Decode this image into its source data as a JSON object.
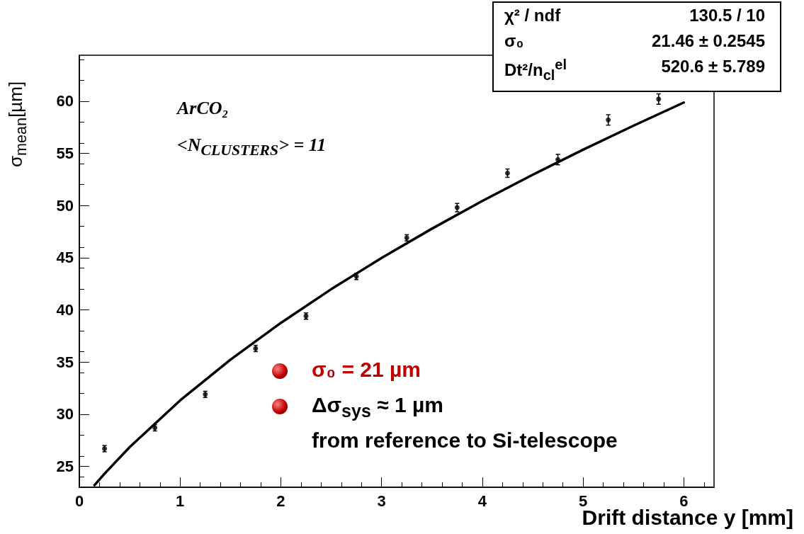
{
  "chart_data": {
    "type": "scatter",
    "xlabel": "Drift distance y [mm]",
    "ylabel": "σ$_{mean}$[µm]",
    "xlim": [
      0,
      6.3
    ],
    "xticks": [
      0,
      1,
      2,
      3,
      4,
      5,
      6
    ],
    "ylim": [
      23,
      64.4
    ],
    "yticks": [
      25,
      30,
      35,
      40,
      45,
      50,
      55,
      60
    ],
    "grid": false,
    "marker": "circle",
    "series": [
      {
        "color": "#000000",
        "x": [
          0.25,
          0.75,
          1.25,
          1.75,
          2.25,
          2.75,
          3.25,
          3.75,
          4.25,
          4.75,
          5.25,
          5.75
        ],
        "values": [
          26.7,
          28.7,
          31.9,
          36.3,
          39.4,
          43.2,
          46.9,
          49.8,
          53.1,
          54.4,
          58.2,
          60.2
        ],
        "errors": [
          0.3,
          0.3,
          0.3,
          0.3,
          0.3,
          0.3,
          0.3,
          0.4,
          0.4,
          0.5,
          0.5,
          0.5
        ]
      },
      {
        "type": "line",
        "color": "#000000",
        "marker": "none",
        "line_style": "solid",
        "x": [
          0.15,
          0.25,
          0.5,
          1,
          1.5,
          2,
          2.5,
          3,
          3.5,
          4,
          4.5,
          5,
          5.5,
          6
        ],
        "values": [
          23.2,
          24.3,
          26.85,
          31.32,
          35.23,
          38.75,
          41.98,
          44.97,
          47.78,
          50.43,
          52.95,
          55.35,
          57.65,
          59.87
        ]
      }
    ],
    "annotations": [
      "χ² / ndf",
      "130.5 / 10",
      "σ₀",
      "21.46 ± 0.2545",
      "Dt²/n$_{cl}$$^{el}$",
      "520.6 ± 5.789",
      "ArCO₂",
      "<N$_{CLUSTERS}$> = 11",
      "σ₀ = 21 µm",
      "Δσ$_{sys}$ ≈ 1 µm",
      "from reference to Si-telescope"
    ]
  }
}
